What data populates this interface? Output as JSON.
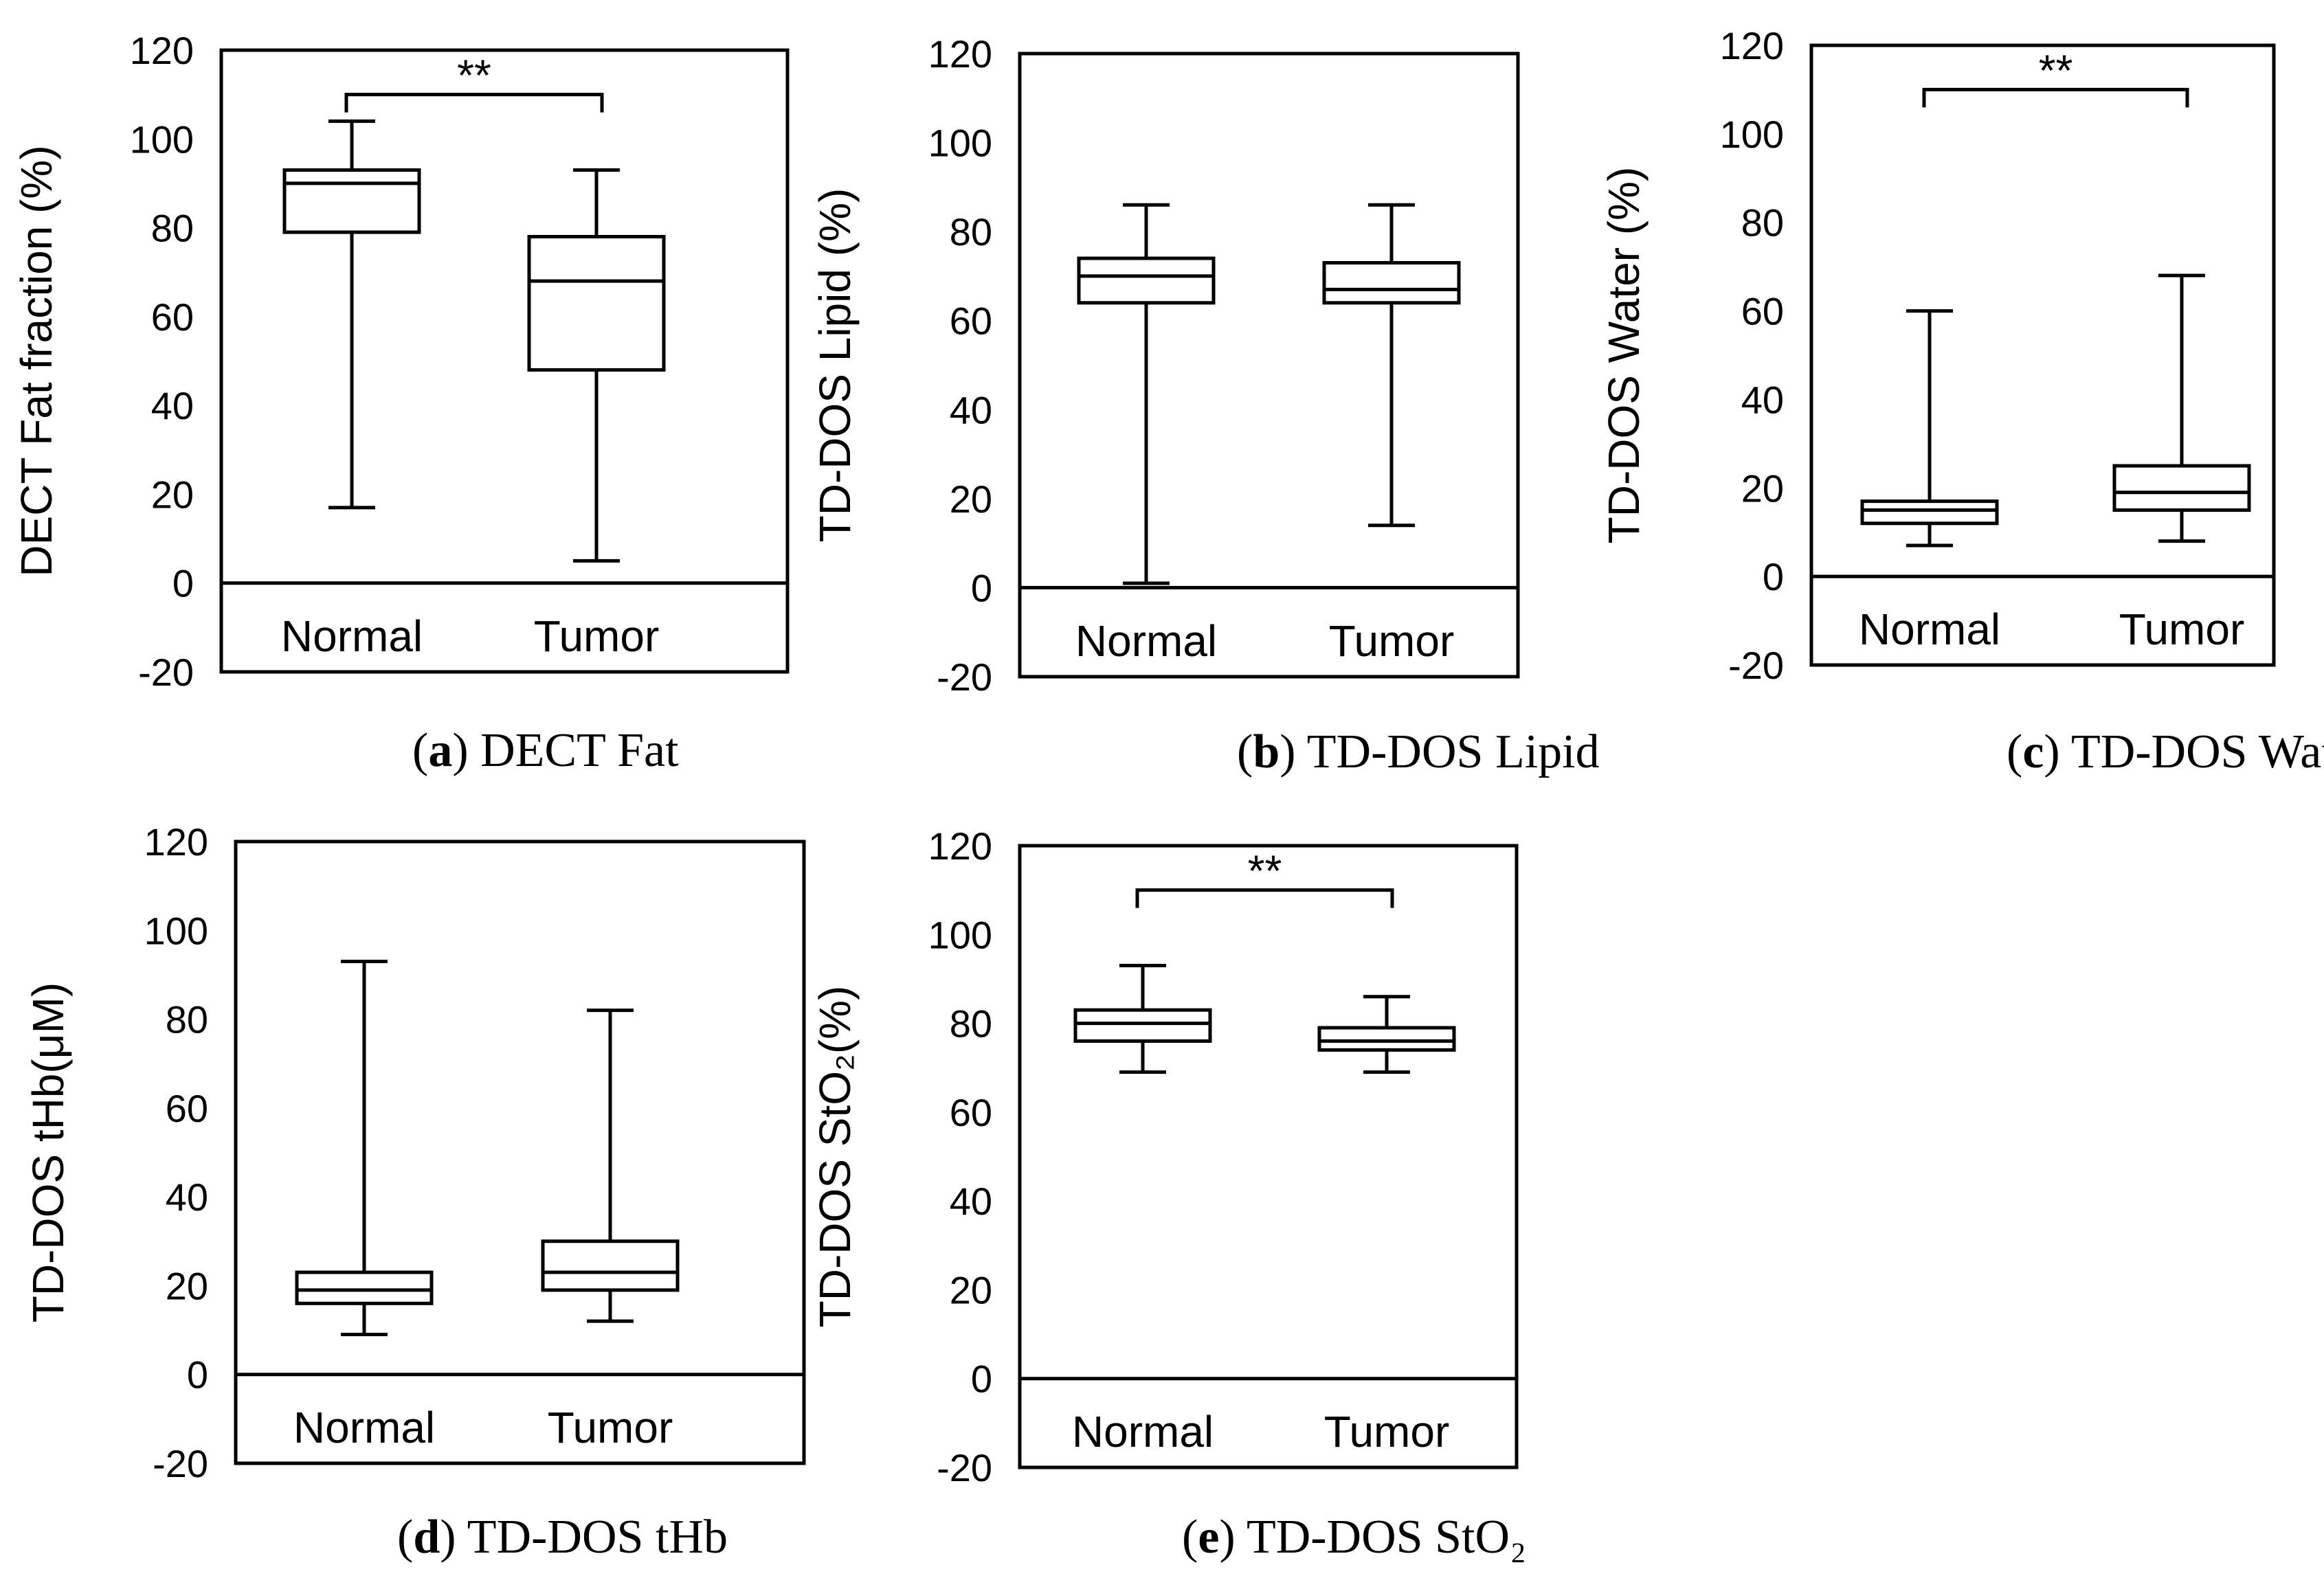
{
  "chart_data": [
    {
      "type": "box",
      "caption_letter": "a",
      "caption_text": "DECT Fat",
      "ylabel": "DECT Fat fraction (%)",
      "ylim": [
        -20,
        120
      ],
      "yticks": [
        "-20",
        "0",
        "20",
        "40",
        "60",
        "80",
        "100",
        "120"
      ],
      "categories": [
        "Normal",
        "Tumor"
      ],
      "boxes": [
        {
          "name": "Normal",
          "min": 17,
          "q1": 79,
          "median": 90,
          "q3": 93,
          "max": 104
        },
        {
          "name": "Tumor",
          "min": 5,
          "q1": 48,
          "median": 68,
          "q3": 78,
          "max": 93
        }
      ],
      "significance": {
        "label": "**",
        "level": 110
      }
    },
    {
      "type": "box",
      "caption_letter": "b",
      "caption_text": "TD-DOS Lipid",
      "ylabel": "TD-DOS Lipid (%)",
      "ylim": [
        -20,
        120
      ],
      "yticks": [
        "-20",
        "0",
        "20",
        "40",
        "60",
        "80",
        "100",
        "120"
      ],
      "categories": [
        "Normal",
        "Tumor"
      ],
      "boxes": [
        {
          "name": "Normal",
          "min": 1,
          "q1": 64,
          "median": 70,
          "q3": 74,
          "max": 86
        },
        {
          "name": "Tumor",
          "min": 14,
          "q1": 64,
          "median": 67,
          "q3": 73,
          "max": 86
        }
      ],
      "significance": null
    },
    {
      "type": "box",
      "caption_letter": "c",
      "caption_text": "TD-DOS Water",
      "ylabel": "TD-DOS Water (%)",
      "ylim": [
        -20,
        120
      ],
      "yticks": [
        "-20",
        "0",
        "20",
        "40",
        "60",
        "80",
        "100",
        "120"
      ],
      "categories": [
        "Normal",
        "Tumor"
      ],
      "boxes": [
        {
          "name": "Normal",
          "min": 7,
          "q1": 12,
          "median": 15,
          "q3": 17,
          "max": 60
        },
        {
          "name": "Tumor",
          "min": 8,
          "q1": 15,
          "median": 19,
          "q3": 25,
          "max": 68
        }
      ],
      "significance": {
        "label": "**",
        "level": 110
      }
    },
    {
      "type": "box",
      "caption_letter": "d",
      "caption_text": "TD-DOS tHb",
      "ylabel": "TD-DOS tHb(μM)",
      "ylim": [
        -20,
        120
      ],
      "yticks": [
        "-20",
        "0",
        "20",
        "40",
        "60",
        "80",
        "100",
        "120"
      ],
      "categories": [
        "Normal",
        "Tumor"
      ],
      "boxes": [
        {
          "name": "Normal",
          "min": 9,
          "q1": 16,
          "median": 19,
          "q3": 23,
          "max": 93
        },
        {
          "name": "Tumor",
          "min": 12,
          "q1": 19,
          "median": 23,
          "q3": 30,
          "max": 82
        }
      ],
      "significance": null
    },
    {
      "type": "box",
      "caption_letter": "e",
      "caption_text": "TD-DOS StO₂",
      "ylabel": "TD-DOS StO₂(%)",
      "ylim": [
        -20,
        120
      ],
      "yticks": [
        "-20",
        "0",
        "20",
        "40",
        "60",
        "80",
        "100",
        "120"
      ],
      "categories": [
        "Normal",
        "Tumor"
      ],
      "boxes": [
        {
          "name": "Normal",
          "min": 69,
          "q1": 76,
          "median": 80,
          "q3": 83,
          "max": 93
        },
        {
          "name": "Tumor",
          "min": 69,
          "q1": 74,
          "median": 76,
          "q3": 79,
          "max": 86
        }
      ],
      "significance": {
        "label": "**",
        "level": 110
      }
    }
  ]
}
